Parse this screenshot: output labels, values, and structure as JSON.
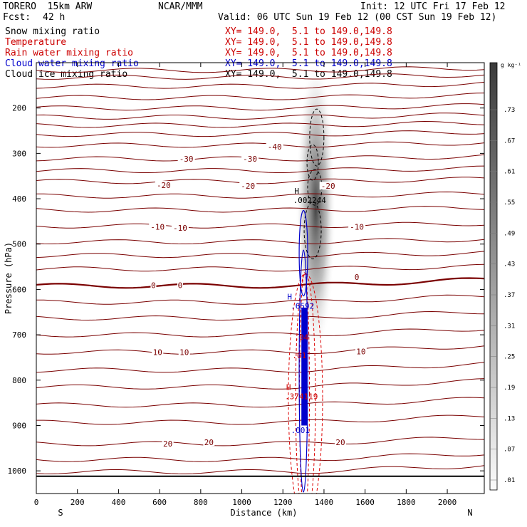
{
  "header": {
    "model": "TORERO  15km ARW",
    "center": "NCAR/MMM",
    "init": "Init: 12 UTC Fri 17 Feb 12",
    "fcst_label": "Fcst:",
    "fcst_value": "42 h",
    "valid": "Valid: 06 UTC Sun 19 Feb 12 (00 CST Sun 19 Feb 12)"
  },
  "fields": [
    {
      "name": "Snow mixing ratio",
      "xy": "XY= 149.0,  5.1 to 149.0,149.8",
      "color": "#000000"
    },
    {
      "name": "Temperature",
      "xy": "XY= 149.0,  5.1 to 149.0,149.8",
      "color": "#cc0000"
    },
    {
      "name": "Rain water mixing ratio",
      "xy": "XY= 149.0,  5.1 to 149.0,149.8",
      "color": "#cc0000"
    },
    {
      "name": "Cloud water mixing ratio",
      "xy": "XY= 149.0,  5.1 to 149.0,149.8",
      "color": "#0000cc"
    },
    {
      "name": "Cloud ice mixing ratio",
      "xy": "XY= 149.0,  5.1 to 149.0,149.8",
      "color": "#000000"
    }
  ],
  "chart_data": {
    "type": "contour",
    "xlabel": "Distance (km)",
    "ylabel": "Pressure (hPa)",
    "x_ticks": [
      0,
      200,
      400,
      600,
      800,
      1000,
      1200,
      1400,
      1600,
      1800,
      2000
    ],
    "x_tick_labels": [
      "0",
      "200",
      "400",
      "600",
      "800",
      "1000",
      "1200",
      "1400",
      "1600",
      "1800",
      "2000"
    ],
    "y_ticks": [
      200,
      300,
      400,
      500,
      600,
      700,
      800,
      900,
      1000
    ],
    "y_tick_labels": [
      "200",
      "300",
      "400",
      "500",
      "600",
      "700",
      "800",
      "900",
      "1000"
    ],
    "xlim": [
      0,
      2180
    ],
    "ylim": [
      1050,
      100
    ],
    "end_labels": {
      "left": "S",
      "right": "N"
    },
    "colorbar": {
      "unit": "g kg⁻¹",
      "labels": [
        ".73",
        ".67",
        ".61",
        ".55",
        ".49",
        ".43",
        ".37",
        ".31",
        ".25",
        ".19",
        ".13",
        ".07",
        ".01"
      ]
    },
    "temperature_contours": [
      {
        "p": 117
      },
      {
        "p": 132
      },
      {
        "p": 152
      },
      {
        "p": 177
      },
      {
        "p": 200
      },
      {
        "p": 220
      },
      {
        "p": 238
      },
      {
        "p": 258
      },
      {
        "p": 282
      },
      {
        "p": 312
      },
      {
        "p": 338
      },
      {
        "p": 362
      },
      {
        "p": 394
      },
      {
        "p": 425
      },
      {
        "p": 460
      },
      {
        "p": 495
      },
      {
        "p": 525
      },
      {
        "p": 555
      },
      {
        "p": 592,
        "bold": true
      },
      {
        "p": 628
      },
      {
        "p": 663
      },
      {
        "p": 700
      },
      {
        "p": 738
      },
      {
        "p": 778
      },
      {
        "p": 815
      },
      {
        "p": 855
      },
      {
        "p": 893
      },
      {
        "p": 940
      },
      {
        "p": 975
      },
      {
        "p": 1002
      }
    ],
    "temperature_labels": [
      {
        "text": "-40",
        "x": 1160,
        "p": 285
      },
      {
        "text": "-30",
        "x": 730,
        "p": 312
      },
      {
        "text": "-30",
        "x": 1040,
        "p": 312
      },
      {
        "text": "-20",
        "x": 620,
        "p": 370
      },
      {
        "text": "-20",
        "x": 1030,
        "p": 372
      },
      {
        "text": "-20",
        "x": 1420,
        "p": 372
      },
      {
        "text": "-10",
        "x": 590,
        "p": 462
      },
      {
        "text": "-10",
        "x": 700,
        "p": 464
      },
      {
        "text": "-10",
        "x": 1560,
        "p": 462
      },
      {
        "text": "0",
        "x": 570,
        "p": 591
      },
      {
        "text": "0",
        "x": 700,
        "p": 591
      },
      {
        "text": "0",
        "x": 1560,
        "p": 573
      },
      {
        "text": "10",
        "x": 590,
        "p": 738
      },
      {
        "text": "10",
        "x": 720,
        "p": 738
      },
      {
        "text": "10",
        "x": 1580,
        "p": 737
      },
      {
        "text": "20",
        "x": 640,
        "p": 940
      },
      {
        "text": "20",
        "x": 840,
        "p": 937
      },
      {
        "text": "20",
        "x": 1480,
        "p": 937
      }
    ],
    "maxima": [
      {
        "symbol": "H",
        "value": ".002244",
        "x": 1330,
        "p": 395,
        "color": "#000000"
      },
      {
        "symbol": "H",
        "value": ".6592",
        "x": 1295,
        "p": 628,
        "color": "#0000cc"
      },
      {
        "symbol": "H",
        "value": ".374119",
        "x": 1290,
        "p": 828,
        "color": "#cc0000"
      }
    ],
    "minor_labels": [
      {
        "text": ".04",
        "x": 1290,
        "p": 705,
        "color": "#cc0000"
      },
      {
        "text": ".01",
        "x": 1280,
        "p": 745,
        "color": "#cc0000"
      },
      {
        "text": ".001",
        "x": 1285,
        "p": 910,
        "color": "#0000cc"
      }
    ]
  }
}
